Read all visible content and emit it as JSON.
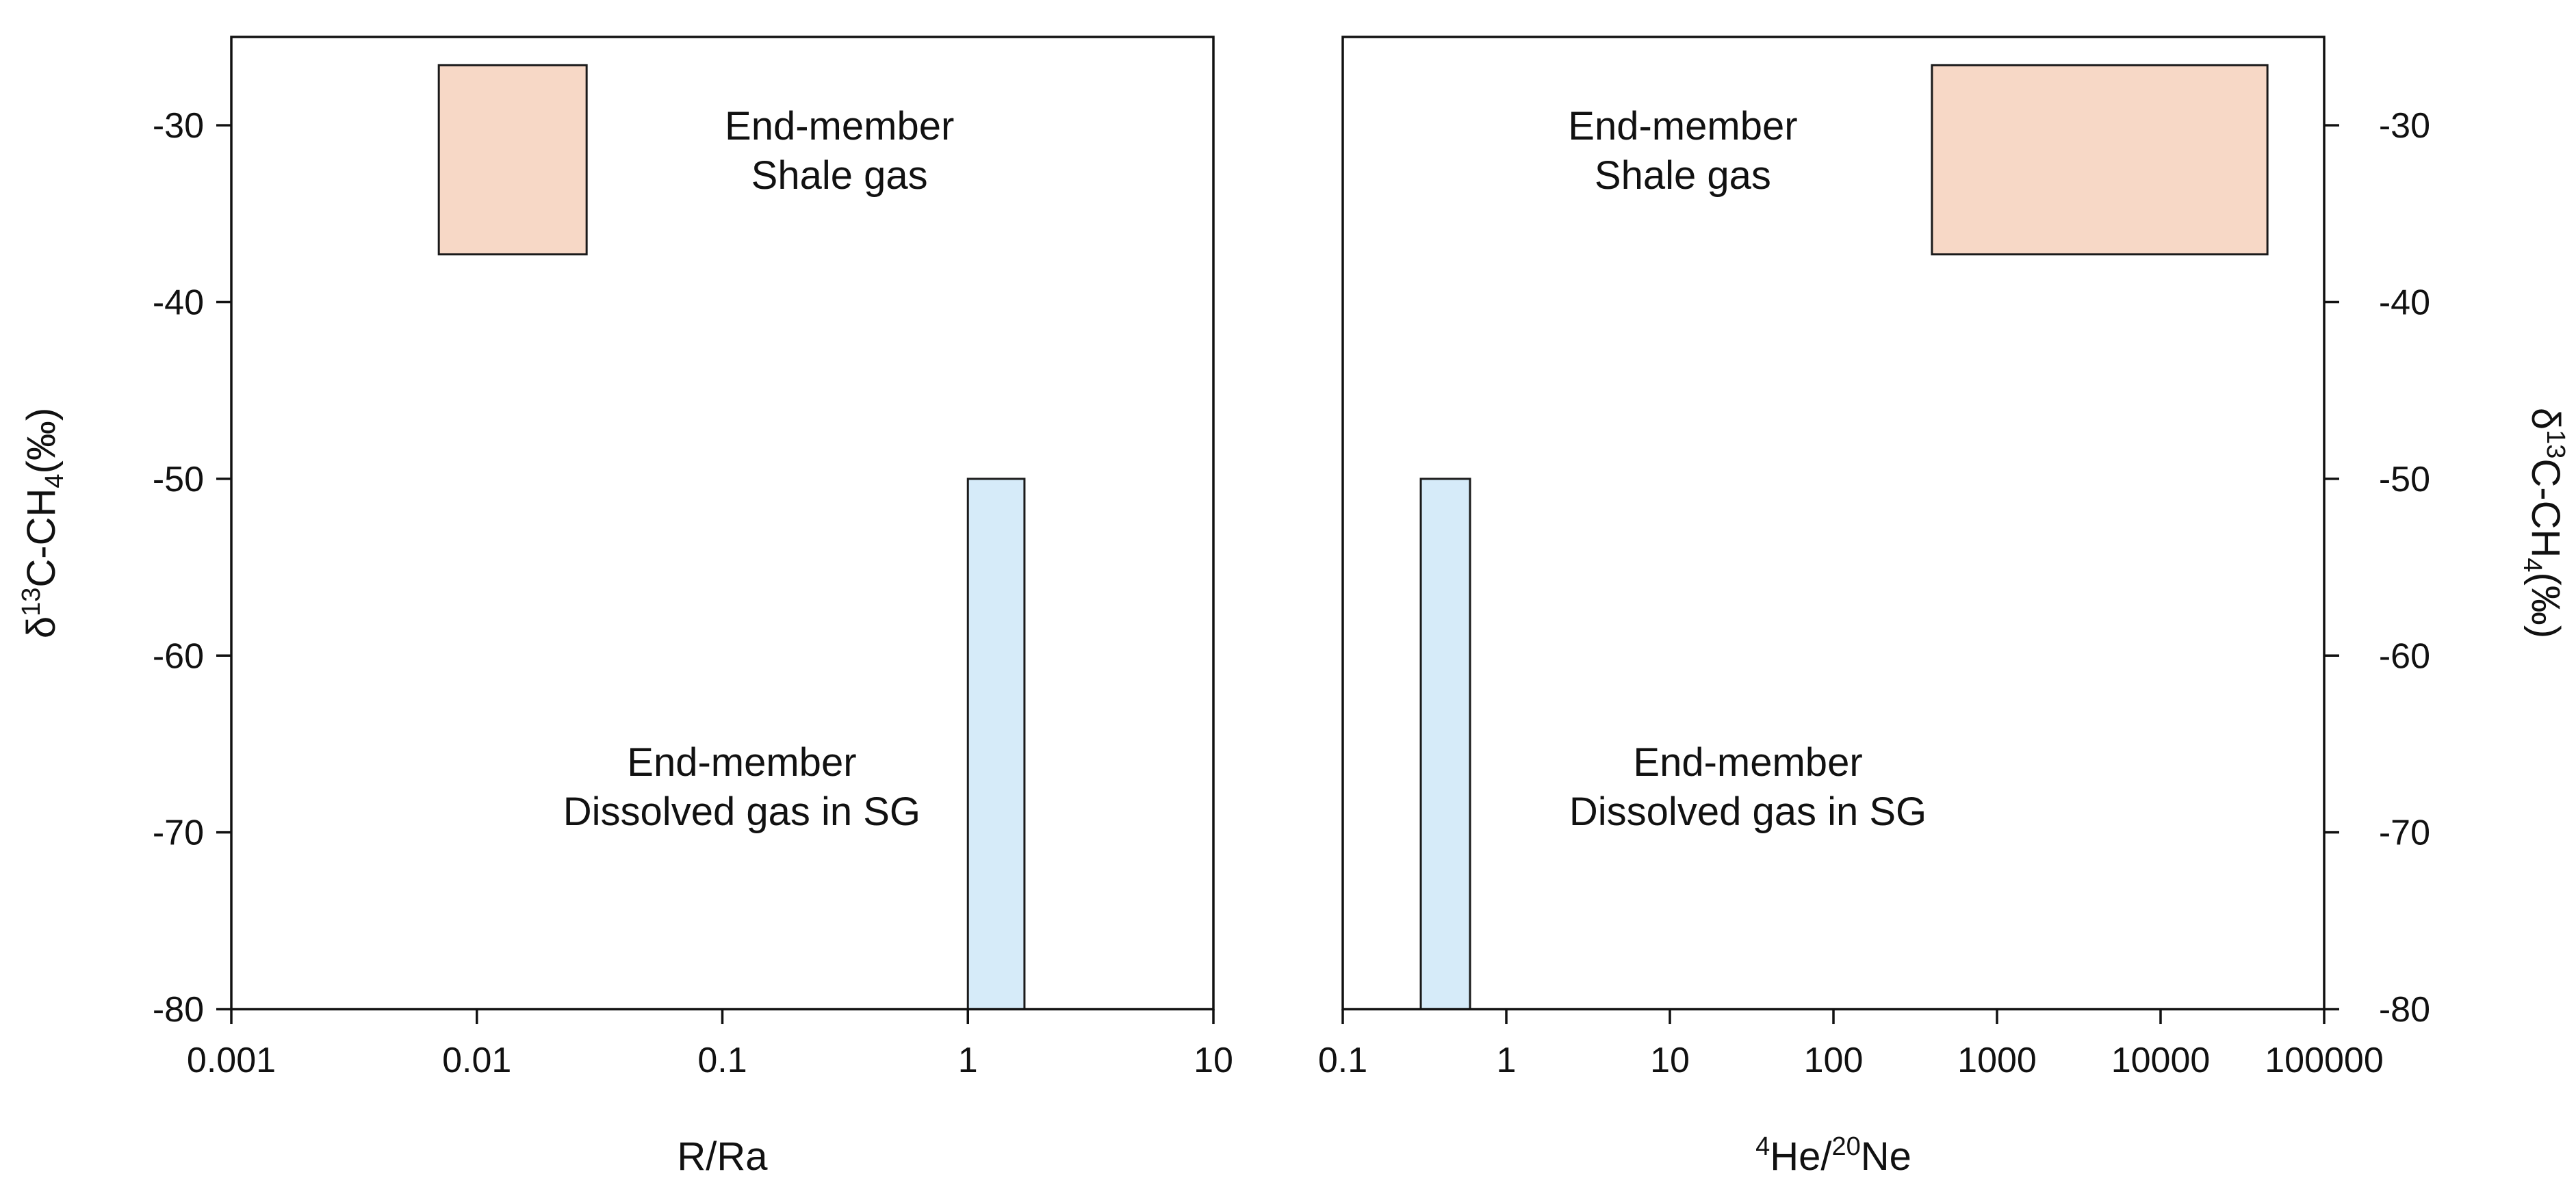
{
  "chart_data": [
    {
      "type": "range-box",
      "panel": "left",
      "xlabel": "R/Ra",
      "ylabel": {
        "prefix": "δ",
        "sup": "13",
        "mid": "C-CH",
        "sub": "4",
        "suffix": "(‰)"
      },
      "xscale": "log",
      "xlim": [
        0.001,
        10
      ],
      "ylim": [
        -80,
        -25
      ],
      "x_tick_labels": [
        "0.001",
        "0.01",
        "0.1",
        "1",
        "10"
      ],
      "x_ticks": [
        0.001,
        0.01,
        0.1,
        1,
        10
      ],
      "y_ticks": [
        -80,
        -70,
        -60,
        -50,
        -40,
        -30
      ],
      "y_tick_labels": [
        "-80",
        "-70",
        "-60",
        "-50",
        "-40",
        "-30"
      ],
      "y_axis_side": "left",
      "boxes": [
        {
          "name": "shale",
          "x": [
            0.007,
            0.028
          ],
          "y": [
            -37.3,
            -26.6
          ],
          "color": "#f7d8c6"
        },
        {
          "name": "dissolved",
          "x": [
            1.0,
            1.7
          ],
          "y": [
            -80,
            -50
          ],
          "color": "#d6ebf9"
        }
      ],
      "annotations": [
        {
          "lines": [
            "End-member",
            "Shale gas"
          ],
          "x": 0.3,
          "y": -31.5
        },
        {
          "lines": [
            "End-member",
            "Dissolved gas in SG"
          ],
          "x": 0.12,
          "y": -67.5
        }
      ]
    },
    {
      "type": "range-box",
      "panel": "right",
      "xlabel": {
        "sup1": "4",
        "mid": "He/",
        "sup2": "20",
        "end": "Ne"
      },
      "ylabel": {
        "prefix": "δ",
        "sup": "13",
        "mid": "C-CH",
        "sub": "4",
        "suffix": "(‰)"
      },
      "xscale": "log",
      "xlim": [
        0.1,
        100000
      ],
      "ylim": [
        -80,
        -25
      ],
      "x_tick_labels": [
        "0.1",
        "1",
        "10",
        "100",
        "1000",
        "10000",
        "100000"
      ],
      "x_ticks": [
        0.1,
        1,
        10,
        100,
        1000,
        10000,
        100000
      ],
      "y_ticks": [
        -80,
        -70,
        -60,
        -50,
        -40,
        -30
      ],
      "y_tick_labels": [
        "-80",
        "-70",
        "-60",
        "-50",
        "-40",
        "-30"
      ],
      "y_axis_side": "right",
      "boxes": [
        {
          "name": "shale",
          "x": [
            400,
            45000
          ],
          "y": [
            -37.3,
            -26.6
          ],
          "color": "#f7d8c6"
        },
        {
          "name": "dissolved",
          "x": [
            0.3,
            0.6
          ],
          "y": [
            -80,
            -50
          ],
          "color": "#d6ebf9"
        }
      ],
      "annotations": [
        {
          "lines": [
            "End-member",
            "Shale gas"
          ],
          "x": 12,
          "y": -31.5
        },
        {
          "lines": [
            "End-member",
            "Dissolved gas in SG"
          ],
          "x": 30,
          "y": -67.5
        }
      ]
    }
  ]
}
